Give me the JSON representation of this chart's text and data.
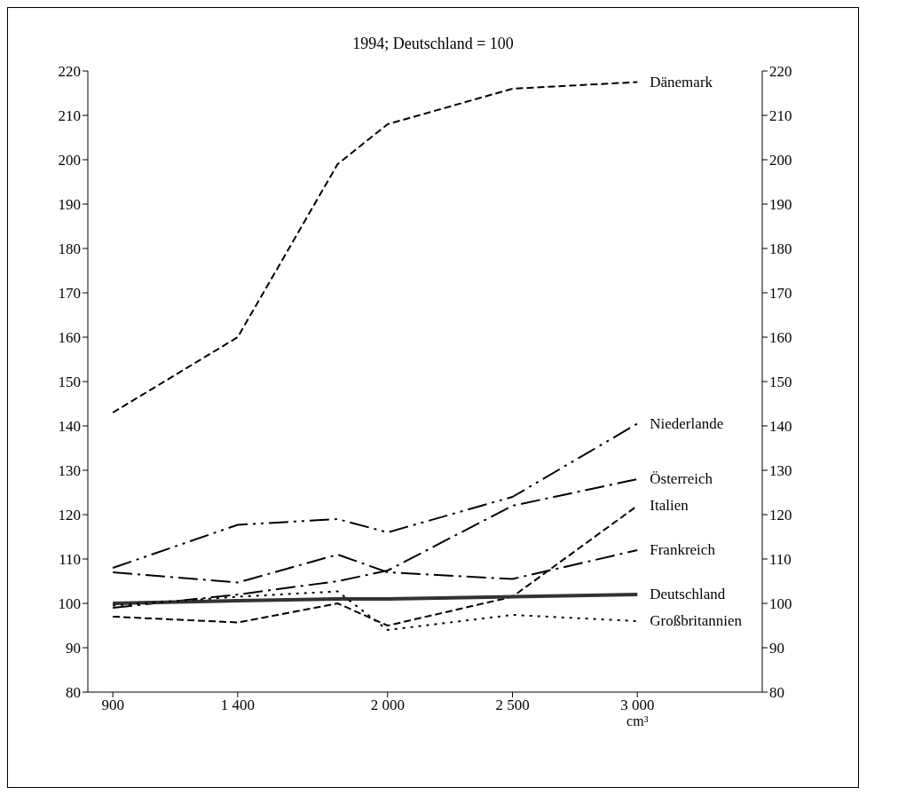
{
  "chart_data": {
    "type": "line",
    "title": "1994; Deutschland = 100",
    "xlabel": "cm³",
    "x": [
      900,
      1400,
      1800,
      2000,
      2500,
      3000
    ],
    "xlim": [
      800,
      3500
    ],
    "xticks": [
      900,
      {
        "value": 1400,
        "label": "1 400"
      },
      {
        "value": 2000,
        "label": "2 000"
      },
      {
        "value": 2500,
        "label": "2 500"
      },
      {
        "value": 3000,
        "label": "3 000"
      }
    ],
    "ylim": [
      80,
      220
    ],
    "yticks": [
      80,
      90,
      100,
      110,
      120,
      130,
      140,
      150,
      160,
      170,
      180,
      190,
      200,
      210,
      220
    ],
    "y2lim": [
      80,
      220
    ],
    "y2ticks": [
      80,
      90,
      100,
      110,
      120,
      130,
      140,
      150,
      160,
      170,
      180,
      190,
      200,
      210,
      220
    ],
    "marker": "none",
    "series": [
      {
        "name": "Dänemark",
        "color": "#000000",
        "line_style": "dashed",
        "values": [
          143,
          160,
          199,
          208,
          216,
          217.5
        ]
      },
      {
        "name": "Niederlande",
        "color": "#000000",
        "line_style": "dashdotdot",
        "values": [
          108,
          117.7,
          119,
          116,
          124,
          140.5
        ]
      },
      {
        "name": "Österreich",
        "color": "#000000",
        "line_style": "dashdot",
        "values": [
          99,
          102,
          105,
          107.4,
          122,
          128
        ]
      },
      {
        "name": "Italien",
        "color": "#000000",
        "line_style": "dashed",
        "values": [
          97,
          95.7,
          100,
          95,
          101.5,
          122
        ]
      },
      {
        "name": "Frankreich",
        "color": "#000000",
        "line_style": "dashdot",
        "values": [
          107,
          104.7,
          111,
          107,
          105.5,
          112
        ]
      },
      {
        "name": "Deutschland",
        "color": "#333333",
        "line_style": "solid",
        "values": [
          100,
          100.6,
          101,
          101,
          101.5,
          102
        ]
      },
      {
        "name": "Großbritannien",
        "color": "#000000",
        "line_style": "dotted",
        "values": [
          99.5,
          101.5,
          102.7,
          94,
          97.4,
          96
        ]
      }
    ]
  }
}
